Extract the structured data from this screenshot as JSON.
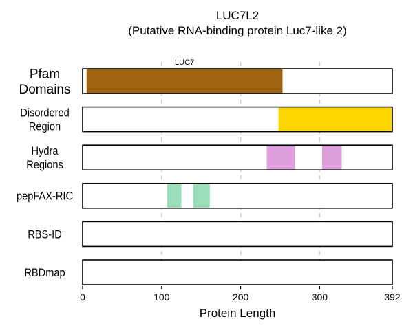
{
  "chart_data": {
    "type": "bar",
    "title": "LUC7L2",
    "subtitle": "(Putative RNA-binding protein Luc7-like 2)",
    "xlabel": "Protein Length",
    "xlim": [
      0,
      392
    ],
    "xticks": [
      0,
      100,
      200,
      300,
      392
    ],
    "vertical_gridlines": [
      100,
      200,
      300
    ],
    "grid": "dashed vertical",
    "tracks": [
      {
        "label_lines": [
          "Pfam",
          "Domains"
        ],
        "segments": [
          {
            "start": 5,
            "end": 253,
            "color": "#A0620F",
            "label": "LUC7"
          }
        ]
      },
      {
        "label_lines": [
          "Disordered",
          "Region"
        ],
        "segments": [
          {
            "start": 248,
            "end": 392,
            "color": "#FFD700"
          }
        ]
      },
      {
        "label_lines": [
          "Hydra",
          "Regions"
        ],
        "segments": [
          {
            "start": 233,
            "end": 269,
            "color": "#DDA0DD"
          },
          {
            "start": 303,
            "end": 328,
            "color": "#DDA0DD"
          }
        ]
      },
      {
        "label_lines": [
          "pepFAX-RIC"
        ],
        "segments": [
          {
            "start": 107,
            "end": 125,
            "color": "#99DDBB"
          },
          {
            "start": 140,
            "end": 161,
            "color": "#99DDBB"
          }
        ]
      },
      {
        "label_lines": [
          "RBS-ID"
        ],
        "segments": []
      },
      {
        "label_lines": [
          "RBDmap"
        ],
        "segments": []
      }
    ]
  }
}
